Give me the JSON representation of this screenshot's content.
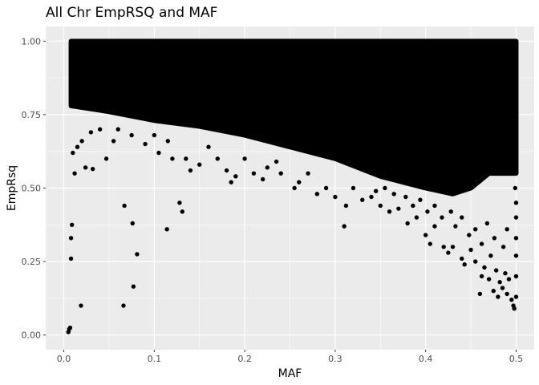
{
  "chart_data": {
    "type": "scatter",
    "title": "All Chr EmpRSQ and MAF",
    "xlabel": "MAF",
    "ylabel": "EmpRsq",
    "xlim": [
      -0.02,
      0.52
    ],
    "ylim": [
      -0.05,
      1.05
    ],
    "x_ticks": [
      0.0,
      0.1,
      0.2,
      0.3,
      0.4,
      0.5
    ],
    "x_tick_labels": [
      "0.0",
      "0.1",
      "0.2",
      "0.3",
      "0.4",
      "0.5"
    ],
    "y_ticks": [
      0.0,
      0.25,
      0.5,
      0.75,
      1.0
    ],
    "y_tick_labels": [
      "0.00",
      "0.25",
      "0.50",
      "0.75",
      "1.00"
    ],
    "grid": true,
    "legend": "none",
    "colors": {
      "panel": "#ebebeb",
      "grid": "#ffffff",
      "point": "#000000"
    },
    "dense_region": {
      "description_value": "boundary of saturated point mass",
      "upper_y": 1.0,
      "lower_boundary": [
        [
          0.008,
          0.78
        ],
        [
          0.05,
          0.76
        ],
        [
          0.1,
          0.73
        ],
        [
          0.15,
          0.71
        ],
        [
          0.2,
          0.68
        ],
        [
          0.25,
          0.64
        ],
        [
          0.3,
          0.6
        ],
        [
          0.35,
          0.54
        ],
        [
          0.4,
          0.5
        ],
        [
          0.43,
          0.48
        ],
        [
          0.45,
          0.5
        ],
        [
          0.47,
          0.55
        ],
        [
          0.5,
          0.55
        ]
      ]
    },
    "points": [
      [
        0.005,
        0.01
      ],
      [
        0.006,
        0.02
      ],
      [
        0.007,
        0.025
      ],
      [
        0.008,
        0.33
      ],
      [
        0.008,
        0.26
      ],
      [
        0.009,
        0.375
      ],
      [
        0.019,
        0.1
      ],
      [
        0.066,
        0.1
      ],
      [
        0.077,
        0.165
      ],
      [
        0.067,
        0.44
      ],
      [
        0.076,
        0.38
      ],
      [
        0.081,
        0.275
      ],
      [
        0.114,
        0.36
      ],
      [
        0.128,
        0.45
      ],
      [
        0.131,
        0.42
      ],
      [
        0.012,
        0.55
      ],
      [
        0.024,
        0.57
      ],
      [
        0.032,
        0.565
      ],
      [
        0.047,
        0.6
      ],
      [
        0.01,
        0.62
      ],
      [
        0.015,
        0.64
      ],
      [
        0.02,
        0.66
      ],
      [
        0.03,
        0.69
      ],
      [
        0.04,
        0.7
      ],
      [
        0.055,
        0.66
      ],
      [
        0.06,
        0.7
      ],
      [
        0.075,
        0.68
      ],
      [
        0.09,
        0.65
      ],
      [
        0.1,
        0.68
      ],
      [
        0.105,
        0.62
      ],
      [
        0.115,
        0.66
      ],
      [
        0.12,
        0.6
      ],
      [
        0.135,
        0.6
      ],
      [
        0.14,
        0.56
      ],
      [
        0.15,
        0.58
      ],
      [
        0.16,
        0.64
      ],
      [
        0.17,
        0.6
      ],
      [
        0.18,
        0.56
      ],
      [
        0.185,
        0.52
      ],
      [
        0.19,
        0.54
      ],
      [
        0.2,
        0.6
      ],
      [
        0.21,
        0.55
      ],
      [
        0.22,
        0.53
      ],
      [
        0.225,
        0.57
      ],
      [
        0.235,
        0.59
      ],
      [
        0.24,
        0.55
      ],
      [
        0.255,
        0.5
      ],
      [
        0.26,
        0.52
      ],
      [
        0.27,
        0.55
      ],
      [
        0.28,
        0.48
      ],
      [
        0.29,
        0.5
      ],
      [
        0.3,
        0.47
      ],
      [
        0.31,
        0.37
      ],
      [
        0.312,
        0.44
      ],
      [
        0.32,
        0.5
      ],
      [
        0.33,
        0.46
      ],
      [
        0.34,
        0.47
      ],
      [
        0.35,
        0.44
      ],
      [
        0.36,
        0.42
      ],
      [
        0.37,
        0.43
      ],
      [
        0.38,
        0.38
      ],
      [
        0.39,
        0.4
      ],
      [
        0.4,
        0.34
      ],
      [
        0.405,
        0.31
      ],
      [
        0.41,
        0.37
      ],
      [
        0.42,
        0.3
      ],
      [
        0.425,
        0.28
      ],
      [
        0.43,
        0.3
      ],
      [
        0.44,
        0.26
      ],
      [
        0.443,
        0.24
      ],
      [
        0.45,
        0.29
      ],
      [
        0.455,
        0.25
      ],
      [
        0.46,
        0.14
      ],
      [
        0.462,
        0.2
      ],
      [
        0.465,
        0.23
      ],
      [
        0.47,
        0.19
      ],
      [
        0.472,
        0.27
      ],
      [
        0.475,
        0.15
      ],
      [
        0.478,
        0.22
      ],
      [
        0.48,
        0.13
      ],
      [
        0.482,
        0.18
      ],
      [
        0.485,
        0.16
      ],
      [
        0.488,
        0.21
      ],
      [
        0.49,
        0.14
      ],
      [
        0.492,
        0.19
      ],
      [
        0.495,
        0.12
      ],
      [
        0.497,
        0.1
      ],
      [
        0.498,
        0.09
      ],
      [
        0.5,
        0.13
      ],
      [
        0.5,
        0.2
      ],
      [
        0.5,
        0.27
      ],
      [
        0.5,
        0.33
      ],
      [
        0.5,
        0.4
      ],
      [
        0.5,
        0.45
      ],
      [
        0.499,
        0.5
      ],
      [
        0.497,
        0.58
      ],
      [
        0.496,
        0.63
      ],
      [
        0.495,
        0.67
      ],
      [
        0.497,
        0.72
      ],
      [
        0.49,
        0.36
      ],
      [
        0.486,
        0.3
      ],
      [
        0.476,
        0.33
      ],
      [
        0.468,
        0.38
      ],
      [
        0.462,
        0.31
      ],
      [
        0.455,
        0.36
      ],
      [
        0.448,
        0.34
      ],
      [
        0.44,
        0.4
      ],
      [
        0.433,
        0.37
      ],
      [
        0.428,
        0.42
      ],
      [
        0.418,
        0.4
      ],
      [
        0.41,
        0.44
      ],
      [
        0.402,
        0.42
      ],
      [
        0.394,
        0.46
      ],
      [
        0.386,
        0.44
      ],
      [
        0.378,
        0.47
      ],
      [
        0.365,
        0.48
      ],
      [
        0.355,
        0.5
      ],
      [
        0.345,
        0.49
      ]
    ]
  }
}
